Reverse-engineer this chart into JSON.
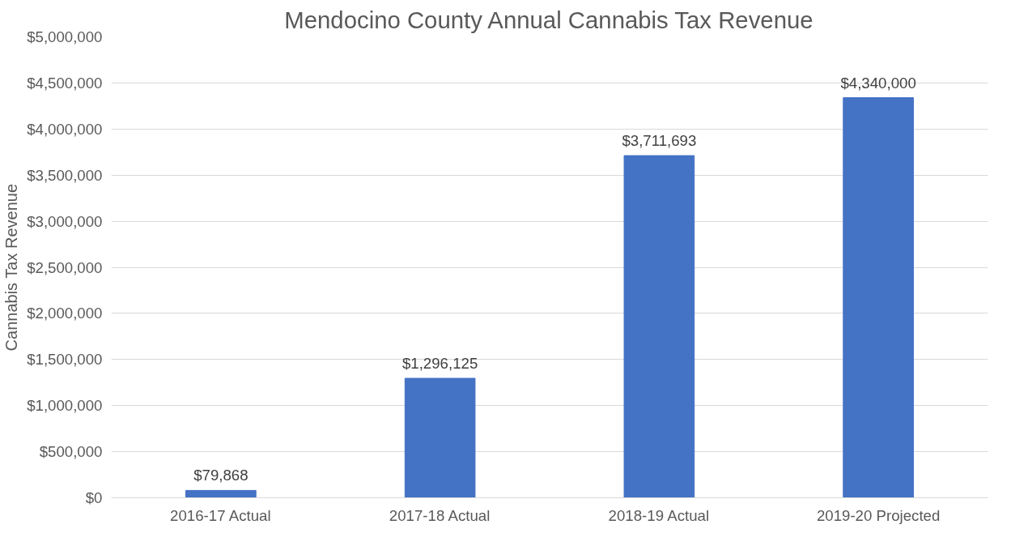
{
  "chart_data": {
    "type": "bar",
    "title": "Mendocino County Annual Cannabis Tax Revenue",
    "ylabel": "Cannabis Tax Revenue",
    "categories": [
      "2016-17 Actual",
      "2017-18 Actual",
      "2018-19 Actual",
      "2019-20 Projected"
    ],
    "values": [
      79868,
      1296125,
      3711693,
      4340000
    ],
    "color": "#4472c4",
    "value_labels": [
      "$79,868",
      "$1,296,125",
      "$3,711,693",
      "$4,340,000"
    ],
    "ylim": [
      0,
      5000000
    ],
    "yticks": [
      {
        "value": 0,
        "label": "$0"
      },
      {
        "value": 500000,
        "label": "$500,000"
      },
      {
        "value": 1000000,
        "label": "$1,000,000"
      },
      {
        "value": 1500000,
        "label": "$1,500,000"
      },
      {
        "value": 2000000,
        "label": "$2,000,000"
      },
      {
        "value": 2500000,
        "label": "$2,500,000"
      },
      {
        "value": 3000000,
        "label": "$3,000,000"
      },
      {
        "value": 3500000,
        "label": "$3,500,000"
      },
      {
        "value": 4000000,
        "label": "$4,000,000"
      },
      {
        "value": 4500000,
        "label": "$4,500,000"
      },
      {
        "value": 5000000,
        "label": "$5,000,000"
      }
    ],
    "grid": "y"
  }
}
